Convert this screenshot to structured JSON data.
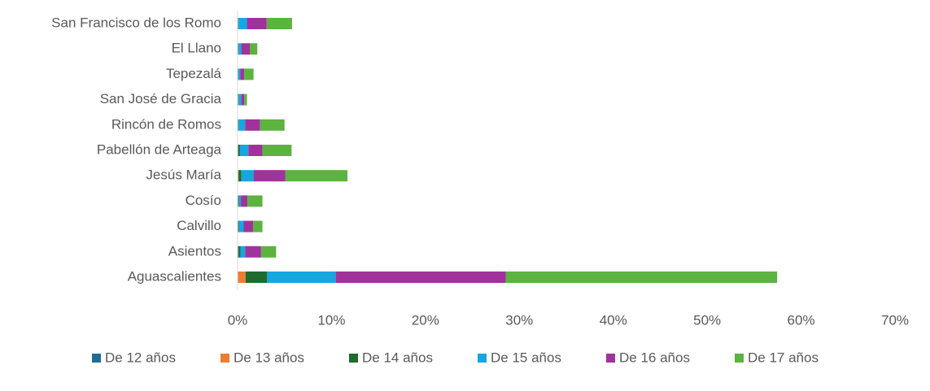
{
  "chart_data": {
    "type": "stacked-barh",
    "categories": [
      "Aguascalientes",
      "Asientos",
      "Calvillo",
      "Cosío",
      "Jesús María",
      "Pabellón de Arteaga",
      "Rincón de Romos",
      "San José de Gracia",
      "Tepezalá",
      "El Llano",
      "San Francisco de los Romo"
    ],
    "series": [
      {
        "name": "De 12 años",
        "color": "#1f6d91",
        "values": [
          0.05,
          0.1,
          0.05,
          0.05,
          0.05,
          0.05,
          0.05,
          0.05,
          0.05,
          0.05,
          0.05
        ]
      },
      {
        "name": "De 13 años",
        "color": "#ed7d31",
        "values": [
          0.8,
          0,
          0,
          0,
          0.05,
          0,
          0,
          0,
          0,
          0,
          0
        ]
      },
      {
        "name": "De 14 años",
        "color": "#1e6b2e",
        "values": [
          2.3,
          0.2,
          0.1,
          0.1,
          0.3,
          0.2,
          0.05,
          0.05,
          0.05,
          0.05,
          0.05
        ]
      },
      {
        "name": "De 15 años",
        "color": "#16a6e0",
        "values": [
          7.3,
          0.5,
          0.5,
          0.2,
          1.3,
          0.9,
          0.7,
          0.3,
          0.2,
          0.3,
          0.9
        ]
      },
      {
        "name": "De 16 años",
        "color": "#a0339b",
        "values": [
          18.1,
          1.7,
          1.0,
          0.7,
          3.4,
          1.5,
          1.6,
          0.3,
          0.4,
          0.9,
          2.1
        ]
      },
      {
        "name": "De 17 años",
        "color": "#5cb33f",
        "values": [
          28.9,
          1.6,
          1.0,
          1.6,
          6.6,
          3.1,
          2.6,
          0.3,
          1.0,
          0.8,
          2.7
        ]
      }
    ],
    "xlim": [
      0,
      70
    ],
    "xticks": [
      {
        "value": 0,
        "label": "0%"
      },
      {
        "value": 10,
        "label": "10%"
      },
      {
        "value": 20,
        "label": "20%"
      },
      {
        "value": 30,
        "label": "30%"
      },
      {
        "value": 40,
        "label": "40%"
      },
      {
        "value": 50,
        "label": "50%"
      },
      {
        "value": 60,
        "label": "60%"
      },
      {
        "value": 70,
        "label": "70%"
      }
    ],
    "legend": "bottom"
  }
}
